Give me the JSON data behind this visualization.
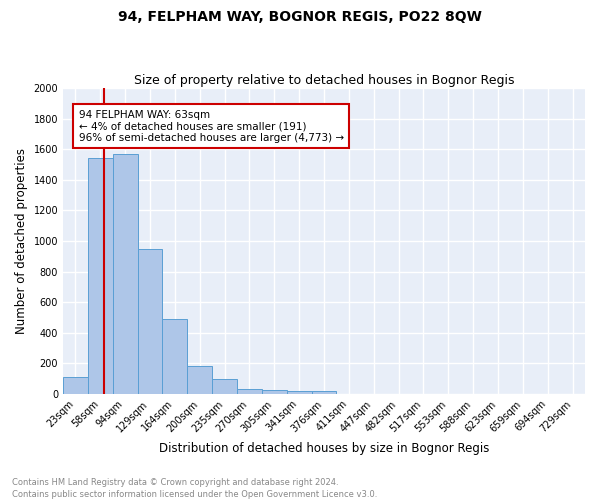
{
  "title": "94, FELPHAM WAY, BOGNOR REGIS, PO22 8QW",
  "subtitle": "Size of property relative to detached houses in Bognor Regis",
  "xlabel": "Distribution of detached houses by size in Bognor Regis",
  "ylabel": "Number of detached properties",
  "bin_labels": [
    "23sqm",
    "58sqm",
    "94sqm",
    "129sqm",
    "164sqm",
    "200sqm",
    "235sqm",
    "270sqm",
    "305sqm",
    "341sqm",
    "376sqm",
    "411sqm",
    "447sqm",
    "482sqm",
    "517sqm",
    "553sqm",
    "588sqm",
    "623sqm",
    "659sqm",
    "694sqm",
    "729sqm"
  ],
  "bar_values": [
    110,
    1540,
    1570,
    950,
    490,
    185,
    95,
    35,
    25,
    18,
    17,
    0,
    0,
    0,
    0,
    0,
    0,
    0,
    0,
    0,
    0
  ],
  "bar_color": "#aec6e8",
  "bar_edge_color": "#5a9fd4",
  "background_color": "#e8eef8",
  "grid_color": "#ffffff",
  "vline_color": "#cc0000",
  "annotation_text": "94 FELPHAM WAY: 63sqm\n← 4% of detached houses are smaller (191)\n96% of semi-detached houses are larger (4,773) →",
  "annotation_box_color": "#ffffff",
  "annotation_box_edge": "#cc0000",
  "ylim": [
    0,
    2000
  ],
  "yticks": [
    0,
    200,
    400,
    600,
    800,
    1000,
    1200,
    1400,
    1600,
    1800,
    2000
  ],
  "footer_text": "Contains HM Land Registry data © Crown copyright and database right 2024.\nContains public sector information licensed under the Open Government Licence v3.0.",
  "title_fontsize": 10,
  "subtitle_fontsize": 9,
  "ylabel_fontsize": 8.5,
  "xlabel_fontsize": 8.5,
  "tick_fontsize": 7,
  "annotation_fontsize": 7.5
}
